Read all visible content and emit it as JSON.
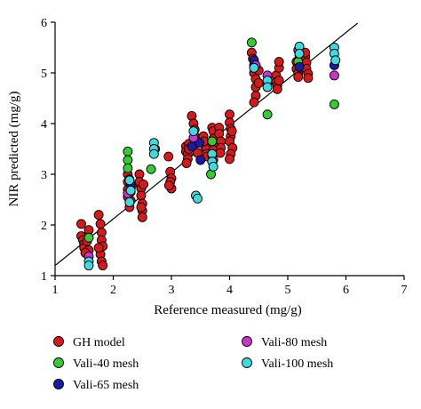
{
  "chart_data": {
    "type": "scatter",
    "xlabel": "Reference measured (mg/g)",
    "ylabel": "NIR predicted (mg/g)",
    "xlim": [
      1,
      7
    ],
    "ylim": [
      1,
      6
    ],
    "xticks": [
      1,
      2,
      3,
      4,
      5,
      6,
      7
    ],
    "yticks": [
      1,
      2,
      3,
      4,
      5,
      6
    ],
    "grid": false,
    "legend_position": "bottom",
    "reference_line": {
      "x": [
        1.0,
        6.2
      ],
      "y": [
        1.2,
        5.98
      ]
    },
    "series": [
      {
        "name": "GH model",
        "color": "#d7191c",
        "points": [
          [
            1.45,
            2.02
          ],
          [
            1.45,
            1.78
          ],
          [
            1.48,
            1.7
          ],
          [
            1.5,
            1.62
          ],
          [
            1.5,
            1.55
          ],
          [
            1.55,
            1.68
          ],
          [
            1.58,
            1.5
          ],
          [
            1.52,
            1.45
          ],
          [
            1.58,
            1.9
          ],
          [
            1.75,
            2.2
          ],
          [
            1.78,
            2.02
          ],
          [
            1.8,
            1.85
          ],
          [
            1.8,
            1.7
          ],
          [
            1.82,
            1.58
          ],
          [
            1.78,
            1.42
          ],
          [
            1.8,
            1.28
          ],
          [
            1.82,
            1.2
          ],
          [
            1.75,
            1.55
          ],
          [
            2.25,
            3.0
          ],
          [
            2.25,
            2.85
          ],
          [
            2.25,
            2.7
          ],
          [
            2.25,
            2.55
          ],
          [
            2.28,
            2.9
          ],
          [
            2.3,
            2.65
          ],
          [
            2.3,
            2.48
          ],
          [
            2.28,
            2.35
          ],
          [
            2.32,
            2.78
          ],
          [
            2.45,
            3.0
          ],
          [
            2.45,
            2.85
          ],
          [
            2.48,
            2.72
          ],
          [
            2.48,
            2.58
          ],
          [
            2.5,
            2.42
          ],
          [
            2.5,
            2.28
          ],
          [
            2.5,
            2.15
          ],
          [
            2.52,
            2.8
          ],
          [
            2.48,
            2.35
          ],
          [
            2.95,
            3.35
          ],
          [
            2.98,
            3.05
          ],
          [
            3.0,
            2.92
          ],
          [
            2.98,
            2.85
          ],
          [
            3.0,
            2.72
          ],
          [
            2.96,
            2.78
          ],
          [
            3.25,
            3.55
          ],
          [
            3.25,
            3.45
          ],
          [
            3.28,
            3.4
          ],
          [
            3.28,
            3.3
          ],
          [
            3.3,
            3.6
          ],
          [
            3.3,
            3.5
          ],
          [
            3.26,
            3.22
          ],
          [
            3.35,
            4.15
          ],
          [
            3.38,
            4.0
          ],
          [
            3.4,
            3.88
          ],
          [
            3.4,
            3.75
          ],
          [
            3.42,
            3.65
          ],
          [
            3.38,
            3.55
          ],
          [
            3.45,
            3.42
          ],
          [
            3.55,
            3.75
          ],
          [
            3.58,
            3.6
          ],
          [
            3.6,
            3.5
          ],
          [
            3.6,
            3.4
          ],
          [
            3.62,
            3.35
          ],
          [
            3.56,
            3.65
          ],
          [
            3.7,
            3.92
          ],
          [
            3.72,
            3.85
          ],
          [
            3.72,
            3.7
          ],
          [
            3.75,
            3.6
          ],
          [
            3.75,
            3.55
          ],
          [
            3.72,
            3.48
          ],
          [
            3.7,
            3.38
          ],
          [
            3.72,
            3.28
          ],
          [
            3.82,
            3.92
          ],
          [
            3.82,
            3.8
          ],
          [
            3.85,
            3.65
          ],
          [
            3.85,
            3.52
          ],
          [
            3.84,
            3.42
          ],
          [
            4.0,
            4.18
          ],
          [
            4.0,
            4.02
          ],
          [
            4.02,
            3.9
          ],
          [
            4.02,
            3.75
          ],
          [
            4.0,
            3.65
          ],
          [
            4.05,
            3.52
          ],
          [
            4.02,
            3.4
          ],
          [
            4.0,
            3.3
          ],
          [
            4.04,
            3.85
          ],
          [
            4.38,
            5.4
          ],
          [
            4.4,
            5.28
          ],
          [
            4.42,
            5.15
          ],
          [
            4.42,
            5.0
          ],
          [
            4.45,
            4.88
          ],
          [
            4.45,
            4.72
          ],
          [
            4.45,
            4.55
          ],
          [
            4.42,
            4.42
          ],
          [
            4.5,
            4.8
          ],
          [
            4.5,
            5.05
          ],
          [
            4.8,
            4.95
          ],
          [
            4.8,
            4.82
          ],
          [
            4.82,
            4.75
          ],
          [
            4.85,
            4.85
          ],
          [
            4.85,
            5.1
          ],
          [
            4.85,
            5.22
          ],
          [
            4.82,
            4.68
          ],
          [
            5.15,
            5.22
          ],
          [
            5.15,
            5.08
          ],
          [
            5.18,
            5.0
          ],
          [
            5.18,
            4.92
          ],
          [
            5.2,
            5.2
          ],
          [
            5.2,
            5.35
          ],
          [
            5.22,
            5.1
          ],
          [
            5.3,
            5.32
          ],
          [
            5.32,
            5.2
          ],
          [
            5.32,
            5.08
          ],
          [
            5.35,
            4.98
          ],
          [
            5.35,
            4.9
          ],
          [
            5.3,
            5.4
          ]
        ]
      },
      {
        "name": "Vali-40 mesh",
        "color": "#33cc33",
        "points": [
          [
            1.58,
            1.75
          ],
          [
            2.25,
            3.45
          ],
          [
            2.25,
            3.28
          ],
          [
            2.25,
            3.12
          ],
          [
            2.65,
            3.1
          ],
          [
            3.7,
            3.65
          ],
          [
            3.68,
            3.0
          ],
          [
            4.38,
            5.6
          ],
          [
            4.65,
            4.18
          ],
          [
            5.18,
            5.22
          ],
          [
            5.8,
            4.38
          ]
        ]
      },
      {
        "name": "Vali-65 mesh",
        "color": "#1a1aa8",
        "points": [
          [
            2.3,
            2.8
          ],
          [
            3.35,
            3.55
          ],
          [
            3.48,
            3.62
          ],
          [
            3.5,
            3.28
          ],
          [
            4.42,
            5.25
          ],
          [
            5.2,
            5.12
          ],
          [
            5.8,
            5.15
          ]
        ]
      },
      {
        "name": "Vali-80 mesh",
        "color": "#cc33cc",
        "points": [
          [
            1.58,
            1.38
          ],
          [
            2.25,
            2.62
          ],
          [
            2.72,
            3.5
          ],
          [
            3.38,
            3.72
          ],
          [
            4.45,
            5.15
          ],
          [
            4.65,
            4.95
          ],
          [
            4.65,
            4.8
          ],
          [
            5.18,
            5.45
          ],
          [
            5.8,
            4.95
          ]
        ]
      },
      {
        "name": "Vali-100 mesh",
        "color": "#40d9e0",
        "points": [
          [
            1.58,
            1.28
          ],
          [
            1.58,
            1.2
          ],
          [
            2.28,
            2.88
          ],
          [
            2.3,
            2.68
          ],
          [
            2.28,
            2.45
          ],
          [
            2.7,
            3.62
          ],
          [
            2.7,
            3.5
          ],
          [
            2.7,
            3.4
          ],
          [
            3.38,
            3.85
          ],
          [
            3.42,
            2.58
          ],
          [
            3.45,
            2.52
          ],
          [
            3.7,
            3.4
          ],
          [
            3.7,
            3.25
          ],
          [
            3.72,
            3.15
          ],
          [
            4.42,
            5.1
          ],
          [
            4.65,
            4.85
          ],
          [
            4.65,
            4.72
          ],
          [
            5.2,
            5.52
          ],
          [
            5.2,
            5.38
          ],
          [
            5.8,
            5.5
          ],
          [
            5.8,
            5.38
          ],
          [
            5.82,
            5.25
          ]
        ]
      }
    ]
  }
}
